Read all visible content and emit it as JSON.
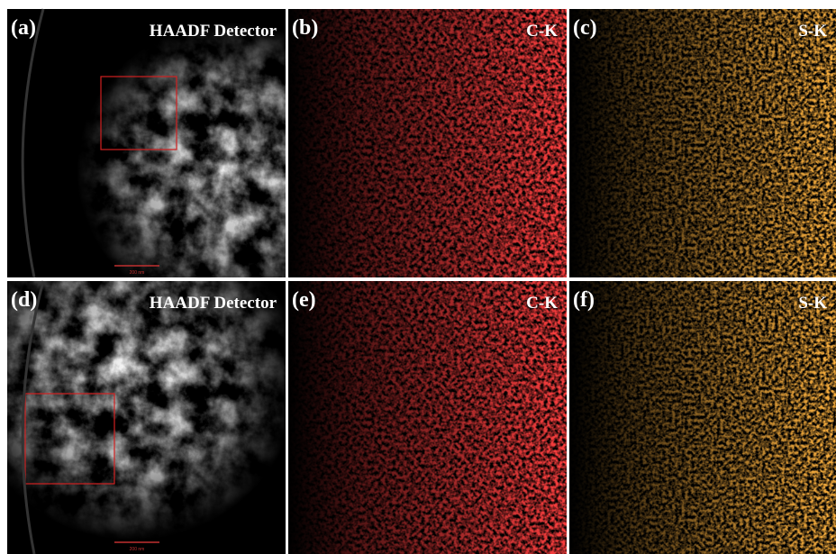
{
  "panels": [
    {
      "label": "(a)",
      "title": "HAADF Detector",
      "scale_bar": "200 nm"
    },
    {
      "label": "(b)",
      "title": "C-K"
    },
    {
      "label": "(c)",
      "title": "S-K"
    },
    {
      "label": "(d)",
      "title": "HAADF Detector",
      "scale_bar": "200 nm"
    },
    {
      "label": "(e)",
      "title": "C-K"
    },
    {
      "label": "(f)",
      "title": "S-K"
    }
  ]
}
